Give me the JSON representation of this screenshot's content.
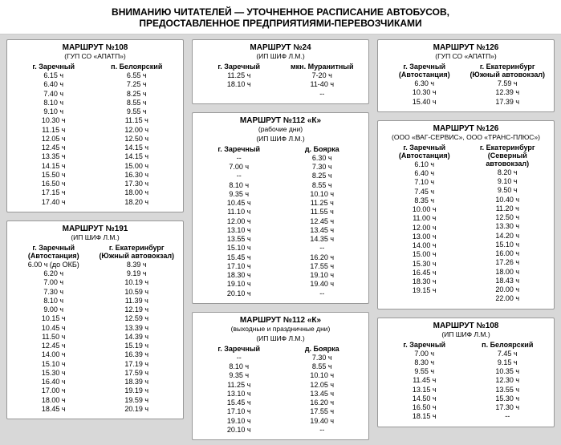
{
  "header_line1": "ВНИМАНИЮ ЧИТАТЕЛЕЙ — УТОЧНЕННОЕ РАСПИСАНИЕ АВТОБУСОВ,",
  "header_line2": "ПРЕДОСТАВЛЕННОЕ ПРЕДПРИЯТИЯМИ-ПЕРЕВОЗЧИКАМИ",
  "cards": {
    "r108a": {
      "title": "МАРШРУТ №108",
      "sub": "(ГУП СО «АПАТП»)",
      "col1_h": "г. Заречный",
      "col2_h": "п. Белоярский",
      "col1": [
        "6.15 ч",
        "6.40 ч",
        "7.40 ч",
        "8.10 ч",
        "9.10 ч",
        "10.30 ч",
        "11.15 ч",
        "12.05 ч",
        "12.45 ч",
        "13.35 ч",
        "14.15 ч",
        "15.50 ч",
        "16.50 ч",
        "17.15 ч",
        "17.40 ч"
      ],
      "col2": [
        "6.55 ч",
        "7.25 ч",
        "8.25 ч",
        "8.55 ч",
        "9.55 ч",
        "11.15 ч",
        "12.00 ч",
        "12.50 ч",
        "14.15 ч",
        "14.15 ч",
        "15.00 ч",
        "16.30 ч",
        "17.30 ч",
        "18.00 ч",
        "18.20 ч"
      ]
    },
    "r191": {
      "title": "МАРШРУТ №191",
      "sub": "(ИП ШИФ Л.М.)",
      "col1_h": "г. Заречный (Автостанция)",
      "col2_h": "г. Екатеринбург (Южный автовокзал)",
      "col1": [
        "6.00 ч (до ОКБ)",
        "6.20 ч",
        "7.00 ч",
        "7.30 ч",
        "8.10 ч",
        "9.00 ч",
        "10.15 ч",
        "10.45 ч",
        "11.50 ч",
        "12.45 ч",
        "14.00 ч",
        "15.10 ч",
        "15.30 ч",
        "16.40 ч",
        "17.00 ч",
        "18.00 ч",
        "18.45 ч"
      ],
      "col2": [
        "8.39 ч",
        "9.19 ч",
        "10.19 ч",
        "10.59 ч",
        "11.39 ч",
        "12.19 ч",
        "12.59 ч",
        "13.39 ч",
        "14.39 ч",
        "15.19 ч",
        "16.39 ч",
        "17.19 ч",
        "17.59 ч",
        "18.39 ч",
        "19.19 ч",
        "19.59 ч",
        "20.19 ч"
      ]
    },
    "r24": {
      "title": "МАРШРУТ №24",
      "sub": "(ИП ШИФ Л.М.)",
      "col1_h": "г. Заречный",
      "col2_h": "мкн. Муранитный",
      "col1": [
        "11.25 ч",
        "18.10 ч"
      ],
      "col2": [
        "7-20 ч",
        "11-40 ч",
        "--"
      ]
    },
    "r112w": {
      "title": "МАРШРУТ №112 «К»",
      "sub2": "(рабочие дни)",
      "sub": "(ИП ШИФ Л.М.)",
      "col1_h": "г. Заречный",
      "col2_h": "д. Боярка",
      "col1": [
        "--",
        "7.00 ч",
        "--",
        "8.10 ч",
        "9.35 ч",
        "10.45 ч",
        "11.10 ч",
        "12.00 ч",
        "13.10 ч",
        "13.55 ч",
        "15.10 ч",
        "15.45 ч",
        "17.10 ч",
        "18.30 ч",
        "19.10 ч",
        "20.10 ч"
      ],
      "col2": [
        "6.30 ч",
        "7.30 ч",
        "8.25 ч",
        "8.55 ч",
        "10.10 ч",
        "11.25 ч",
        "11.55 ч",
        "12.45 ч",
        "13.45 ч",
        "14.35 ч",
        "--",
        "16.20 ч",
        "17.55 ч",
        "19.10 ч",
        "19.40 ч",
        "--"
      ]
    },
    "r112h": {
      "title": "МАРШРУТ №112 «К»",
      "sub2": "(выходные и праздничные дни)",
      "sub": "(ИП ШИФ Л.М.)",
      "col1_h": "г. Заречный",
      "col2_h": "д. Боярка",
      "col1": [
        "--",
        "8.10 ч",
        "9.35 ч",
        "11.25 ч",
        "13.10 ч",
        "15.45 ч",
        "17.10 ч",
        "19.10 ч",
        "20.10 ч"
      ],
      "col2": [
        "7.30 ч",
        "8.55 ч",
        "10.10 ч",
        "12.05 ч",
        "13.45 ч",
        "16.20 ч",
        "17.55 ч",
        "19.40 ч",
        "--"
      ]
    },
    "r126a": {
      "title": "МАРШРУТ №126",
      "sub": "(ГУП СО «АПАТП»)",
      "col1_h": "г. Заречный (Автостанция)",
      "col2_h": "г. Екатеринбург (Южный автовокзал)",
      "col1": [
        "6.30 ч",
        "10.30 ч",
        "15.40 ч"
      ],
      "col2": [
        "7.59 ч",
        "12.39 ч",
        "17.39 ч"
      ]
    },
    "r126b": {
      "title": "МАРШРУТ №126",
      "sub": "(ООО «ВАГ-СЕРВИС», ООО «ТРАНС-ПЛЮС»)",
      "col1_h": "г. Заречный (Автостанция)",
      "col2_h": "г. Екатеринбург (Северный автовокзал)",
      "col1": [
        "6.10 ч",
        "6.40 ч",
        "7.10 ч",
        "7.45 ч",
        "8.35 ч",
        "10.00 ч",
        "11.00 ч",
        "12.00 ч",
        "13.00 ч",
        "14.00 ч",
        "15.00 ч",
        "15.30 ч",
        "16.45 ч",
        "18.30 ч",
        "19.15 ч"
      ],
      "col2": [
        "8.20 ч",
        "9.10 ч",
        "9.50 ч",
        "10.40 ч",
        "11.20 ч",
        "12.50 ч",
        "13.30 ч",
        "14.20 ч",
        "15.10 ч",
        "16.00 ч",
        "17.26 ч",
        "18.00 ч",
        "18.43 ч",
        "20.00 ч",
        "22.00 ч"
      ]
    },
    "r108b": {
      "title": "МАРШРУТ №108",
      "sub": "(ИП ШИФ Л.М.)",
      "col1_h": "г. Заречный",
      "col2_h": "п. Белоярский",
      "col1": [
        "7.00 ч",
        "8.30 ч",
        "9.55 ч",
        "11.45 ч",
        "13.15 ч",
        "14.50 ч",
        "16.50 ч",
        "18.15 ч"
      ],
      "col2": [
        "7.45 ч",
        "9.15 ч",
        "10.35 ч",
        "12.30 ч",
        "13.55 ч",
        "15.30 ч",
        "17.30 ч",
        "--"
      ]
    }
  }
}
